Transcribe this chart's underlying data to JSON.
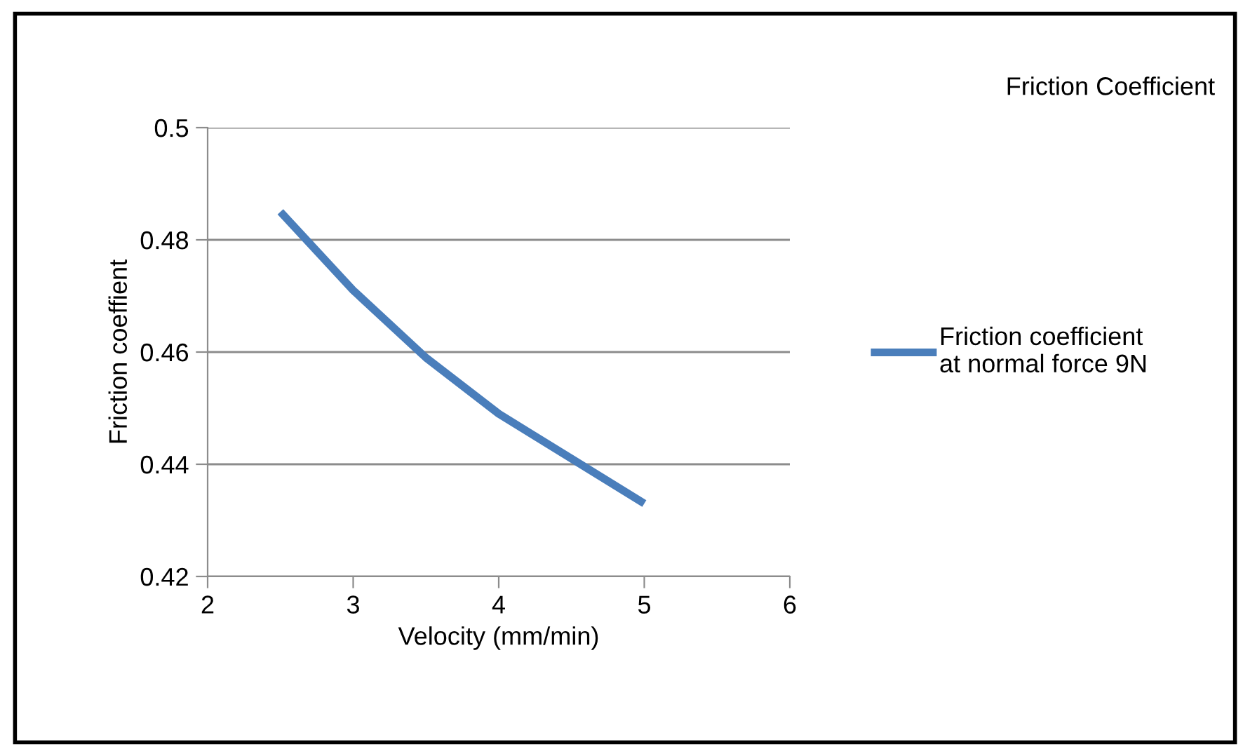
{
  "chart_data": {
    "type": "line",
    "title": "Friction Coefficient",
    "xlabel": "Velocity (mm/min)",
    "ylabel": "Friction coeffient",
    "x": [
      2.5,
      3,
      3.5,
      4,
      4.5,
      5
    ],
    "series": [
      {
        "name": "Friction coefficient\nat normal force 9N",
        "color": "#4a7ebb",
        "values": [
          0.485,
          0.471,
          0.459,
          0.449,
          0.441,
          0.433
        ]
      }
    ],
    "xlim": [
      2,
      6
    ],
    "xticks": [
      2,
      3,
      4,
      5,
      6
    ],
    "ylim": [
      0.42,
      0.5
    ],
    "yticks": [
      0.42,
      0.44,
      0.46,
      0.48,
      0.5
    ],
    "grid": "y",
    "legend": "right",
    "marker": "none",
    "line_style": "solid"
  }
}
